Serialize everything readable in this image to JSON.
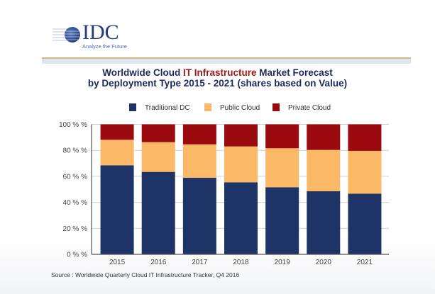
{
  "logo": {
    "name": "IDC",
    "tagline": "Analyze the Future"
  },
  "title": {
    "line1_pre": "Worldwide Cloud ",
    "line1_highlight": "IT Infrastructure",
    "line1_post": " Market Forecast",
    "line2": "by Deployment Type  2015 - 2021 (shares based on Value)"
  },
  "source": "Source : Worldwide Quarterly Cloud IT Infrastructure Tracker, Q4 2016",
  "chart_data": {
    "type": "bar",
    "stacked": true,
    "title": "Worldwide Cloud IT Infrastructure Market Forecast by Deployment Type 2015 - 2021 (shares based on Value)",
    "xlabel": "",
    "ylabel": "",
    "categories": [
      "2015",
      "2016",
      "2017",
      "2018",
      "2019",
      "2020",
      "2021"
    ],
    "series": [
      {
        "name": "Traditional DC",
        "color": "#1e3366",
        "values": [
          68.5,
          63.4,
          58.9,
          55.4,
          51.6,
          48.5,
          46.7
        ]
      },
      {
        "name": "Public Cloud",
        "color": "#fbb866",
        "values": [
          19.6,
          22.9,
          25.7,
          27.6,
          30.0,
          31.8,
          32.9
        ]
      },
      {
        "name": "Private Cloud",
        "color": "#9a0a0f",
        "values": [
          11.9,
          13.7,
          15.4,
          17.0,
          18.4,
          19.7,
          20.4
        ]
      }
    ],
    "ylim": [
      0,
      100
    ],
    "yticks": [
      0,
      20,
      40,
      60,
      80,
      100
    ],
    "ytick_labels": [
      "0 % %",
      "20 % %",
      "40 % %",
      "60 % %",
      "80 % %",
      "100 % %"
    ],
    "grid": true,
    "legend_position": "top"
  }
}
